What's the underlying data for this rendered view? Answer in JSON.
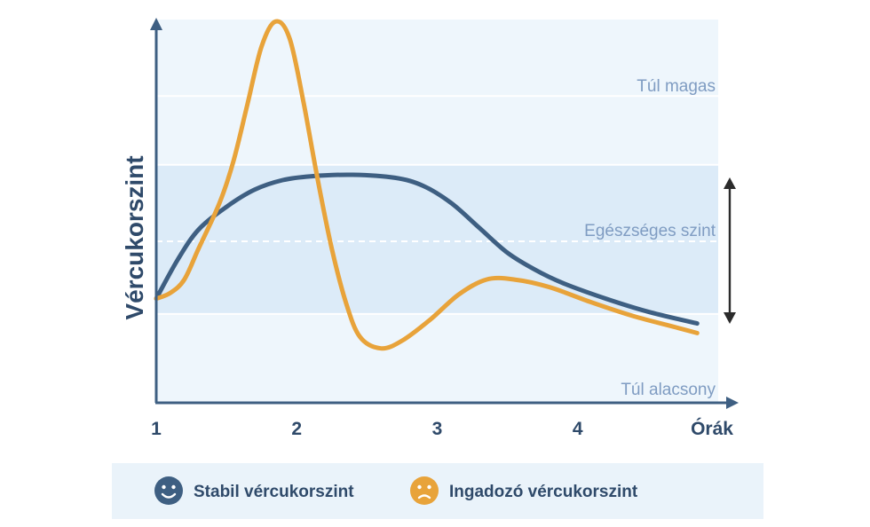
{
  "chart_data": {
    "type": "line",
    "title": "",
    "xlabel": "Órák",
    "ylabel": "Vércukorszint",
    "xlim": [
      1,
      5
    ],
    "ylim": [
      0,
      100
    ],
    "x_ticks": [
      {
        "value": 1,
        "label": "1"
      },
      {
        "value": 2,
        "label": "2"
      },
      {
        "value": 3,
        "label": "3"
      },
      {
        "value": 4,
        "label": "4"
      }
    ],
    "zones": [
      {
        "label": "Túl magas",
        "from": 80,
        "to": 100
      },
      {
        "label": "Egészséges szint",
        "from": 23,
        "to": 62,
        "midline": 42
      },
      {
        "label": "Túl alacsony",
        "from": 0,
        "to": 23
      }
    ],
    "legend_placement": "bottom",
    "series": [
      {
        "name": "Stabil vércukorszint",
        "color": "#3e5f82",
        "icon": "happy-face-icon",
        "points": [
          [
            1.0,
            27
          ],
          [
            1.15,
            37
          ],
          [
            1.3,
            45
          ],
          [
            1.5,
            51
          ],
          [
            1.7,
            55.5
          ],
          [
            1.9,
            58
          ],
          [
            2.1,
            59
          ],
          [
            2.4,
            59.4
          ],
          [
            2.7,
            58.6
          ],
          [
            2.9,
            56.5
          ],
          [
            3.1,
            52
          ],
          [
            3.3,
            45.5
          ],
          [
            3.5,
            39
          ],
          [
            3.7,
            34.5
          ],
          [
            3.9,
            31
          ],
          [
            4.2,
            27
          ],
          [
            4.5,
            23.6
          ],
          [
            4.85,
            20.5
          ]
        ]
      },
      {
        "name": "Ingadozó vércukorszint",
        "color": "#e8a33a",
        "icon": "sad-face-icon",
        "points": [
          [
            1.0,
            27
          ],
          [
            1.1,
            28.5
          ],
          [
            1.2,
            32
          ],
          [
            1.3,
            40
          ],
          [
            1.45,
            52
          ],
          [
            1.55,
            63
          ],
          [
            1.65,
            78
          ],
          [
            1.75,
            93
          ],
          [
            1.85,
            99.5
          ],
          [
            1.95,
            95
          ],
          [
            2.05,
            78
          ],
          [
            2.15,
            58
          ],
          [
            2.25,
            40
          ],
          [
            2.35,
            26
          ],
          [
            2.45,
            17
          ],
          [
            2.6,
            14
          ],
          [
            2.75,
            16
          ],
          [
            2.95,
            21.5
          ],
          [
            3.15,
            28
          ],
          [
            3.35,
            32
          ],
          [
            3.55,
            32
          ],
          [
            3.8,
            30
          ],
          [
            4.1,
            26
          ],
          [
            4.4,
            22.4
          ],
          [
            4.7,
            19.5
          ],
          [
            4.85,
            18
          ]
        ]
      }
    ]
  }
}
